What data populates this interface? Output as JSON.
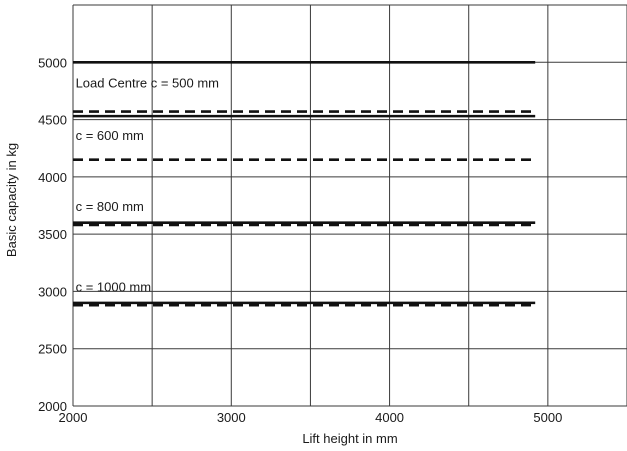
{
  "chart_data": {
    "type": "line",
    "title": "",
    "xlabel": "Lift height in mm",
    "ylabel": "Basic capacity in kg",
    "xlim": [
      2000,
      5500
    ],
    "ylim": [
      2000,
      5500
    ],
    "x_ticks": [
      2000,
      3000,
      4000,
      5000
    ],
    "x_tick_labels": [
      "2000",
      "3000",
      "4000",
      "5000"
    ],
    "y_ticks": [
      2000,
      2500,
      3000,
      3500,
      4000,
      4500,
      5000
    ],
    "y_tick_labels": [
      "2000",
      "2500",
      "3000",
      "3500",
      "4000",
      "4500",
      "5000"
    ],
    "x_grid": [
      2000,
      2500,
      3000,
      3500,
      4000,
      4500,
      5000,
      5500
    ],
    "y_grid": [
      2000,
      2500,
      3000,
      3500,
      4000,
      4500,
      5000,
      5500
    ],
    "grid": true,
    "legend": "none",
    "series": [
      {
        "style": "solid",
        "x": [
          2000,
          4920
        ],
        "y": [
          5000,
          5000
        ]
      },
      {
        "style": "dashed",
        "x": [
          2000,
          4920
        ],
        "y": [
          4570,
          4570
        ]
      },
      {
        "style": "solid",
        "x": [
          2000,
          4920
        ],
        "y": [
          4530,
          4530
        ]
      },
      {
        "style": "dashed",
        "x": [
          2000,
          4920
        ],
        "y": [
          4150,
          4150
        ]
      },
      {
        "style": "solid",
        "x": [
          2000,
          4920
        ],
        "y": [
          3600,
          3600
        ]
      },
      {
        "style": "dashed",
        "x": [
          2000,
          4920
        ],
        "y": [
          3580,
          3580
        ]
      },
      {
        "style": "solid",
        "x": [
          2000,
          4920
        ],
        "y": [
          2900,
          2900
        ]
      },
      {
        "style": "dashed",
        "x": [
          2000,
          4920
        ],
        "y": [
          2880,
          2880
        ]
      }
    ],
    "annotations": [
      {
        "text": "Load Centre c = 500 mm",
        "x": 2010,
        "y": 4780
      },
      {
        "text": "c = 600 mm",
        "x": 2010,
        "y": 4320
      },
      {
        "text": "c = 800 mm",
        "x": 2010,
        "y": 3700
      },
      {
        "text": "c = 1000 mm",
        "x": 2010,
        "y": 3000
      }
    ]
  }
}
